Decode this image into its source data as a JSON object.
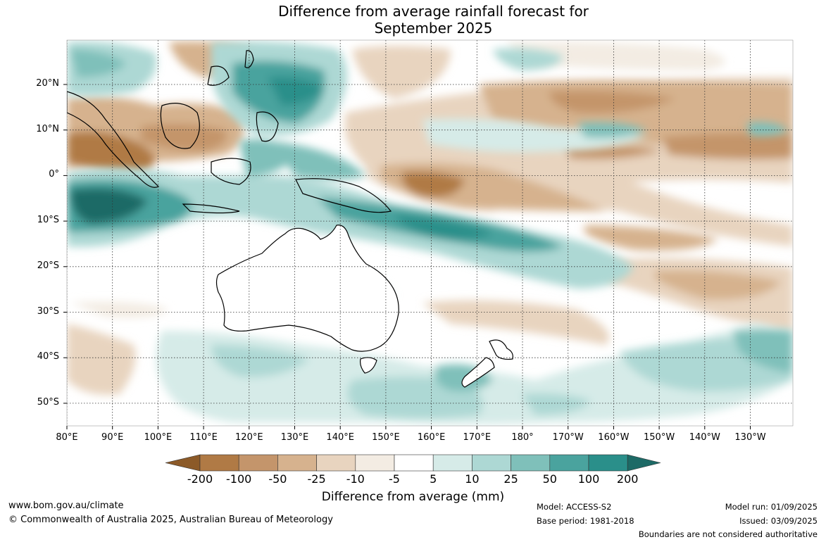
{
  "title_line1": "Difference from average rainfall forecast for",
  "title_line2": "September 2025",
  "lat_labels": [
    "20°N",
    "10°N",
    "0°",
    "10°S",
    "20°S",
    "30°S",
    "40°S",
    "50°S"
  ],
  "lon_labels": [
    "80°E",
    "90°E",
    "100°E",
    "110°E",
    "120°E",
    "130°E",
    "140°E",
    "150°E",
    "160°E",
    "170°E",
    "180°",
    "170°W",
    "160°W",
    "150°W",
    "140°W",
    "130°W"
  ],
  "colorbar": {
    "labels": [
      "-200",
      "-100",
      "-50",
      "-25",
      "-10",
      "-5",
      "5",
      "10",
      "25",
      "50",
      "100",
      "200"
    ],
    "colors": [
      "#8c5a28",
      "#b07a45",
      "#c4956b",
      "#d6b28e",
      "#e8d4bf",
      "#f3ece3",
      "#ffffff",
      "#d6ebe8",
      "#add8d4",
      "#7fc0ba",
      "#4aa39e",
      "#2a8f8a",
      "#1d6a66"
    ],
    "title": "Difference from average (mm)"
  },
  "footer": {
    "website": "www.bom.gov.au/climate",
    "copyright": "© Commonwealth of Australia 2025, Australian Bureau of Meteorology",
    "model": "Model: ACCESS-S2",
    "base_period": "Base period: 1981-2018",
    "model_run": "Model run: 01/09/2025",
    "issued": "Issued: 03/09/2025",
    "disclaimer": "Boundaries are not considered authoritative"
  }
}
